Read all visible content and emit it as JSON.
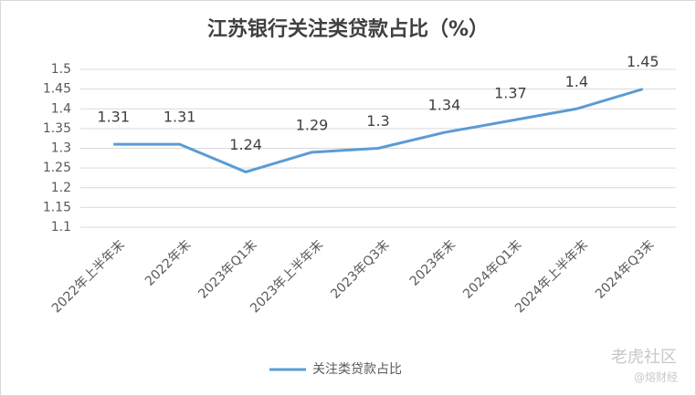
{
  "chart_data": {
    "type": "line",
    "title": "江苏银行关注类贷款占比（%）",
    "categories": [
      "2022年上半年末",
      "2022年末",
      "2023年Q1末",
      "2023年上半年末",
      "2023年Q3末",
      "2023年末",
      "2024年Q1末",
      "2024年上半年末",
      "2024年Q3末"
    ],
    "series": [
      {
        "name": "关注类贷款占比",
        "color": "#5b9bd5",
        "values": [
          1.31,
          1.31,
          1.24,
          1.29,
          1.3,
          1.34,
          1.37,
          1.4,
          1.45
        ]
      }
    ],
    "ylim": [
      1.1,
      1.5
    ],
    "yticks": [
      1.1,
      1.15,
      1.2,
      1.25,
      1.3,
      1.35,
      1.4,
      1.45,
      1.5
    ],
    "grid": true,
    "legend": "bottom"
  },
  "watermark": {
    "text": "老虎社区",
    "sub": "@熔财经"
  }
}
